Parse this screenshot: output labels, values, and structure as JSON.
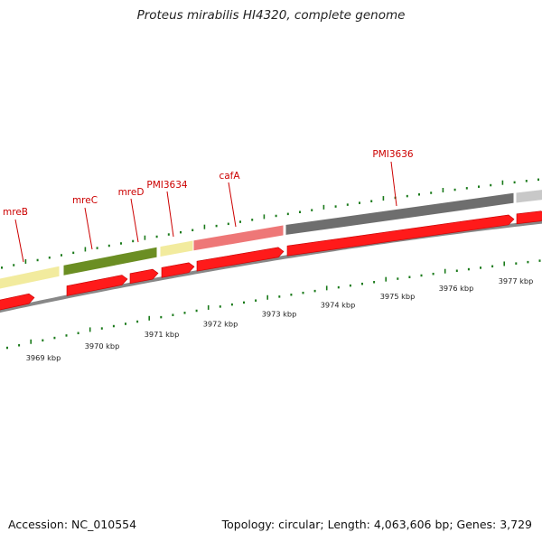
{
  "title": "Proteus mirabilis HI4320, complete genome",
  "footer": {
    "accession": "Accession: NC_010554",
    "summary": "Topology: circular; Length: 4,063,606 bp; Genes: 3,729"
  },
  "colors": {
    "background": "#ffffff",
    "cds": "#ff1a1a",
    "backbone": "#888888",
    "tick": "#1a7a1a",
    "label": "#cc0000"
  },
  "genes": [
    {
      "name": "mreB",
      "color": "#f2eb9e"
    },
    {
      "name": "mreC",
      "color": "#6b8e23"
    },
    {
      "name": "mreD",
      "color": "#f2eb9e"
    },
    {
      "name": "PMI3634",
      "color": "#f2eb9e"
    },
    {
      "name": "cafA",
      "color": "#ee7777"
    },
    {
      "name": "PMI3636",
      "color": "#6e6e6e"
    },
    {
      "name": "",
      "color": "#c8c8c8"
    }
  ],
  "scale_labels": [
    "3969 kbp",
    "3970 kbp",
    "3971 kbp",
    "3972 kbp",
    "3973 kbp",
    "3974 kbp",
    "3975 kbp",
    "3976 kbp",
    "3977 kbp"
  ]
}
